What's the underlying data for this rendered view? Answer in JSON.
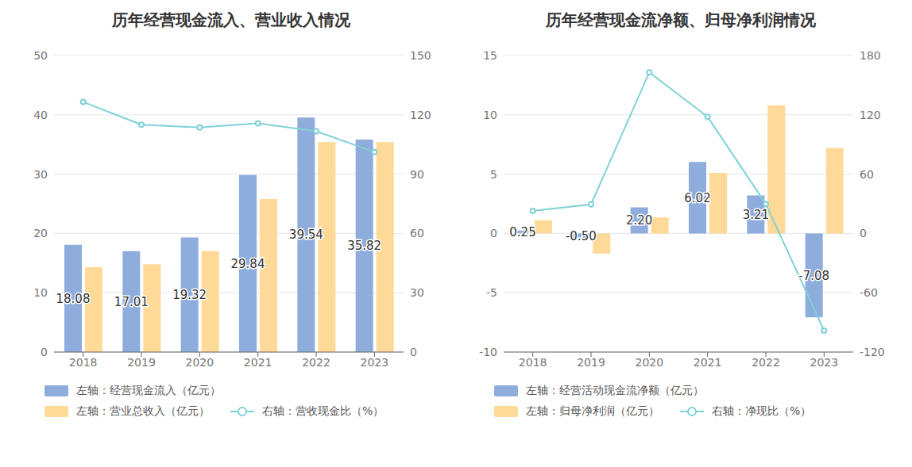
{
  "chart_data": [
    {
      "type": "bar",
      "title": "历年经营现金流入、营业收入情况",
      "categories": [
        "2018",
        "2019",
        "2020",
        "2021",
        "2022",
        "2023"
      ],
      "series": [
        {
          "name": "左轴：经营现金流入（亿元）",
          "color": "#8eaddc",
          "values": [
            18.08,
            17.01,
            19.32,
            29.84,
            39.54,
            35.82
          ],
          "data_labels": true
        },
        {
          "name": "左轴：营业总收入（亿元）",
          "color": "#ffd998",
          "values": [
            14.3,
            14.8,
            17.0,
            25.8,
            35.4,
            35.4
          ]
        },
        {
          "name": "右轴：营收现金比（%）",
          "color": "#7fd1d6",
          "type": "line",
          "marker": "circle",
          "axis": "y2",
          "values": [
            126.5,
            115.0,
            113.6,
            115.7,
            111.7,
            101.2
          ]
        }
      ],
      "ylim": [
        0,
        50
      ],
      "yticks": [
        0,
        10,
        20,
        30,
        40,
        50
      ],
      "y2lim": [
        0,
        150
      ],
      "y2ticks": [
        0,
        30,
        60,
        90,
        120,
        150
      ],
      "grid": true,
      "legend": "bottom"
    },
    {
      "type": "bar",
      "title": "历年经营现金流净额、归母净利润情况",
      "categories": [
        "2018",
        "2019",
        "2020",
        "2021",
        "2022",
        "2023"
      ],
      "series": [
        {
          "name": "左轴：经营活动现金流净额（亿元）",
          "color": "#8eaddc",
          "values": [
            0.25,
            -0.5,
            2.2,
            6.02,
            3.21,
            -7.08
          ],
          "value_labels": [
            "0.25",
            "-0.50",
            "2.20",
            "6.02",
            "3.21",
            "-7.08"
          ],
          "data_labels": true
        },
        {
          "name": "左轴：归母净利润（亿元）",
          "color": "#ffd998",
          "values": [
            1.1,
            -1.7,
            1.35,
            5.1,
            10.8,
            7.2
          ]
        },
        {
          "name": "右轴：净现比（%）",
          "color": "#7fd1d6",
          "type": "line",
          "marker": "circle",
          "axis": "y2",
          "values": [
            22.7,
            29.4,
            163.0,
            118.0,
            29.7,
            -98.3
          ]
        }
      ],
      "ylim": [
        -10,
        15
      ],
      "yticks": [
        -10,
        -5,
        0,
        5,
        10,
        15
      ],
      "y2lim": [
        -120,
        180
      ],
      "y2ticks": [
        -120,
        -60,
        0,
        60,
        120,
        180
      ],
      "grid": true,
      "legend": "bottom"
    }
  ]
}
